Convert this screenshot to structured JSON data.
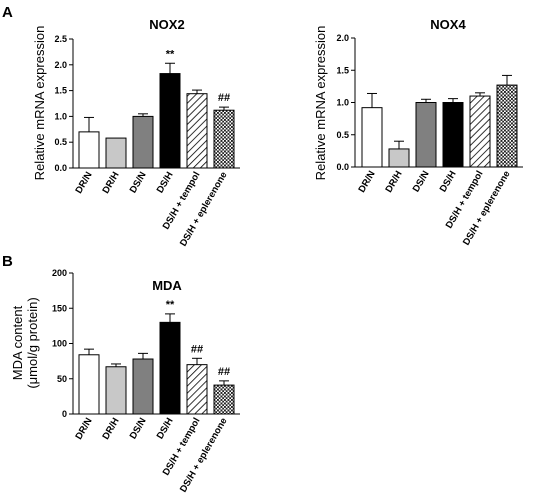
{
  "panels": {
    "a": "A",
    "b": "B"
  },
  "chart_data": [
    {
      "type": "bar",
      "panel": "A",
      "title": "NOX2",
      "ylabel": "Relative mRNA expression",
      "ylim": [
        0,
        2.5
      ],
      "yticks": [
        "0.0",
        "0.5",
        "1.0",
        "1.5",
        "2.0",
        "2.5"
      ],
      "categories": [
        "DR/N",
        "DR/H",
        "DS/N",
        "DS/H",
        "DS/H + tempol",
        "DS/H + eplerenone"
      ],
      "values": [
        0.7,
        0.58,
        1.0,
        1.83,
        1.44,
        1.12
      ],
      "errors": [
        0.28,
        0.0,
        0.05,
        0.2,
        0.07,
        0.06
      ],
      "annotations": [
        "",
        "",
        "",
        "**",
        "",
        "##"
      ],
      "fills": [
        "white",
        "lightgray",
        "gray",
        "black",
        "hatch",
        "dots"
      ]
    },
    {
      "type": "bar",
      "panel": "A",
      "title": "NOX4",
      "ylabel": "Relative mRNA expression",
      "ylim": [
        0,
        2.0
      ],
      "yticks": [
        "0.0",
        "0.5",
        "1.0",
        "1.5",
        "2.0"
      ],
      "categories": [
        "DR/N",
        "DR/H",
        "DS/N",
        "DS/H",
        "DS/H + tempol",
        "DS/H + eplerenone"
      ],
      "values": [
        0.92,
        0.28,
        1.0,
        1.0,
        1.1,
        1.27
      ],
      "errors": [
        0.22,
        0.12,
        0.05,
        0.06,
        0.05,
        0.15
      ],
      "annotations": [
        "",
        "",
        "",
        "",
        "",
        ""
      ],
      "fills": [
        "white",
        "lightgray",
        "gray",
        "black",
        "hatch",
        "dots"
      ]
    },
    {
      "type": "bar",
      "panel": "B",
      "title": "MDA",
      "ylabel": "MDA content",
      "ylabel2": "(μmol/g protein)",
      "ylim": [
        0,
        200
      ],
      "yticks": [
        "0",
        "50",
        "100",
        "150",
        "200"
      ],
      "categories": [
        "DR/N",
        "DR/H",
        "DS/N",
        "DS/H",
        "DS/H + tempol",
        "DS/H + eplerenone"
      ],
      "values": [
        84,
        67,
        78,
        130,
        70,
        41
      ],
      "errors": [
        8,
        4,
        8,
        12,
        9,
        6
      ],
      "annotations": [
        "",
        "",
        "",
        "**",
        "##",
        "##"
      ],
      "fills": [
        "white",
        "lightgray",
        "gray",
        "black",
        "hatch",
        "dots"
      ]
    }
  ]
}
